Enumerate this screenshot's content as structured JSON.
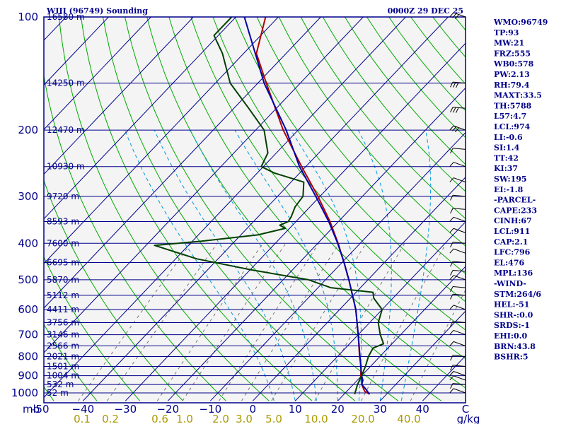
{
  "header": {
    "station": "WIII (96749) Sounding",
    "time": "0000Z 29 DEC 25"
  },
  "chart_data": {
    "type": "line",
    "title": "WIII (96749) Sounding",
    "subtitle": "0000Z 29 DEC 25",
    "pressure_axis": {
      "label": "mb",
      "ticks": [
        100,
        200,
        300,
        400,
        500,
        600,
        700,
        800,
        900,
        1000
      ],
      "range": [
        100,
        1050
      ],
      "scale": "log"
    },
    "temperature_axis": {
      "ticks": [
        -50,
        -40,
        -30,
        -20,
        -10,
        0,
        10,
        20,
        30,
        40
      ],
      "labels": [
        "-50",
        "−40",
        "−30",
        "−20",
        "−10",
        "0",
        "10",
        "20",
        "30",
        "40"
      ],
      "range": [
        -50,
        50
      ],
      "last_tick": "C",
      "skew": 45
    },
    "mixing_ratio_axis": {
      "labels": [
        "0.1",
        "0.2",
        "0.6",
        "1.0",
        "2.0",
        "3.0",
        "5.0",
        "10.0",
        "20.0",
        "40.0"
      ],
      "unit": "g/kg"
    },
    "height_labels": [
      {
        "p": 100,
        "label": "16580 m"
      },
      {
        "p": 150,
        "label": "14250 m"
      },
      {
        "p": 200,
        "label": "12470 m"
      },
      {
        "p": 250,
        "label": "10930 m"
      },
      {
        "p": 300,
        "label": "9720 m"
      },
      {
        "p": 350,
        "label": "8593 m"
      },
      {
        "p": 400,
        "label": "7600 m"
      },
      {
        "p": 450,
        "label": "6695 m"
      },
      {
        "p": 500,
        "label": "5870 m"
      },
      {
        "p": 550,
        "label": "5112 m"
      },
      {
        "p": 600,
        "label": "4411 m"
      },
      {
        "p": 650,
        "label": "3756 m"
      },
      {
        "p": 700,
        "label": "3146 m"
      },
      {
        "p": 750,
        "label": "2566 m"
      },
      {
        "p": 800,
        "label": "2021 m"
      },
      {
        "p": 850,
        "label": "1501 m"
      },
      {
        "p": 900,
        "label": "1004 m"
      },
      {
        "p": 950,
        "label": "532 m"
      },
      {
        "p": 1000,
        "label": "52 m"
      }
    ],
    "series": [
      {
        "name": "",
        "color": "#b00000",
        "points": [
          [
            1008,
            26
          ],
          [
            990,
            24.2
          ],
          [
            950,
            22
          ],
          [
            925,
            21
          ],
          [
            900,
            19.8
          ],
          [
            850,
            17.8
          ],
          [
            800,
            15.2
          ],
          [
            700,
            10
          ],
          [
            600,
            3.8
          ],
          [
            500,
            -4.5
          ],
          [
            450,
            -9.5
          ],
          [
            400,
            -15.2
          ],
          [
            350,
            -22
          ],
          [
            300,
            -30.5
          ],
          [
            250,
            -41
          ],
          [
            200,
            -53.5
          ],
          [
            150,
            -68
          ],
          [
            125,
            -77
          ],
          [
            100,
            -83
          ]
        ]
      },
      {
        "name": "",
        "color": "#0000aa",
        "points": [
          [
            1008,
            26
          ],
          [
            970,
            23.5
          ],
          [
            950,
            22
          ],
          [
            925,
            21.3
          ],
          [
            900,
            20
          ],
          [
            850,
            17.7
          ],
          [
            800,
            15.3
          ],
          [
            700,
            10
          ],
          [
            600,
            3.8
          ],
          [
            500,
            -4.5
          ],
          [
            450,
            -9.5
          ],
          [
            400,
            -15.3
          ],
          [
            350,
            -22.3
          ],
          [
            300,
            -31
          ],
          [
            250,
            -41.5
          ],
          [
            200,
            -52.8
          ],
          [
            150,
            -68.5
          ],
          [
            100,
            -88
          ]
        ]
      },
      {
        "name": "",
        "color": "#004000",
        "points": [
          [
            1008,
            22.5
          ],
          [
            950,
            21
          ],
          [
            900,
            20
          ],
          [
            850,
            18.8
          ],
          [
            800,
            17.3
          ],
          [
            760,
            16.5
          ],
          [
            740,
            18
          ],
          [
            700,
            15.2
          ],
          [
            650,
            12
          ],
          [
            600,
            10
          ],
          [
            560,
            5.5
          ],
          [
            540,
            4
          ],
          [
            525,
            -7
          ],
          [
            500,
            -14
          ],
          [
            470,
            -30
          ],
          [
            440,
            -45
          ],
          [
            405,
            -58
          ],
          [
            395,
            -48
          ],
          [
            380,
            -36
          ],
          [
            365,
            -31
          ],
          [
            358,
            -33
          ],
          [
            350,
            -31.8
          ],
          [
            340,
            -32.2
          ],
          [
            320,
            -33.5
          ],
          [
            300,
            -34
          ],
          [
            275,
            -37
          ],
          [
            260,
            -46
          ],
          [
            250,
            -50.5
          ],
          [
            230,
            -52
          ],
          [
            200,
            -58
          ],
          [
            175,
            -66.5
          ],
          [
            150,
            -76.5
          ],
          [
            125,
            -85
          ],
          [
            112,
            -91
          ],
          [
            100,
            -91
          ]
        ]
      }
    ],
    "indices": [
      {
        "label": "WMO:96749"
      },
      {
        "label": "TP:93"
      },
      {
        "label": "MW:21"
      },
      {
        "label": "FRZ:555"
      },
      {
        "label": "WB0:578"
      },
      {
        "label": "PW:2.13"
      },
      {
        "label": "RH:79.4"
      },
      {
        "label": "MAXT:33.5"
      },
      {
        "label": "TH:5788"
      },
      {
        "label": "L57:4.7"
      },
      {
        "label": "LCL:974"
      },
      {
        "label": "LI:-0.6"
      },
      {
        "label": "SI:1.4"
      },
      {
        "label": "TT:42"
      },
      {
        "label": "KI:37"
      },
      {
        "label": "SW:195"
      },
      {
        "label": "EI:-1.8"
      },
      {
        "label": "-PARCEL-"
      },
      {
        "label": "CAPE:233"
      },
      {
        "label": "CINH:67"
      },
      {
        "label": "LCL:911"
      },
      {
        "label": "CAP:2.1"
      },
      {
        "label": "LFC:796"
      },
      {
        "label": "EL:476"
      },
      {
        "label": "MPL:136"
      },
      {
        "label": "-WIND-"
      },
      {
        "label": "STM:264/6"
      },
      {
        "label": "HEL:-51"
      },
      {
        "label": "SHR-:0.0"
      },
      {
        "label": "SRDS:-1"
      },
      {
        "label": "EHI:0.0"
      },
      {
        "label": "BRN:43.8"
      },
      {
        "label": "BSHR:5"
      }
    ],
    "colors": {
      "background": "#f4f4f4",
      "isobar": "#00008b",
      "isotherm": "#00008b",
      "dry_adiabat": "#00aa00",
      "moist_adiabat": "#0099dd",
      "mixing_ratio": "#777777"
    }
  }
}
